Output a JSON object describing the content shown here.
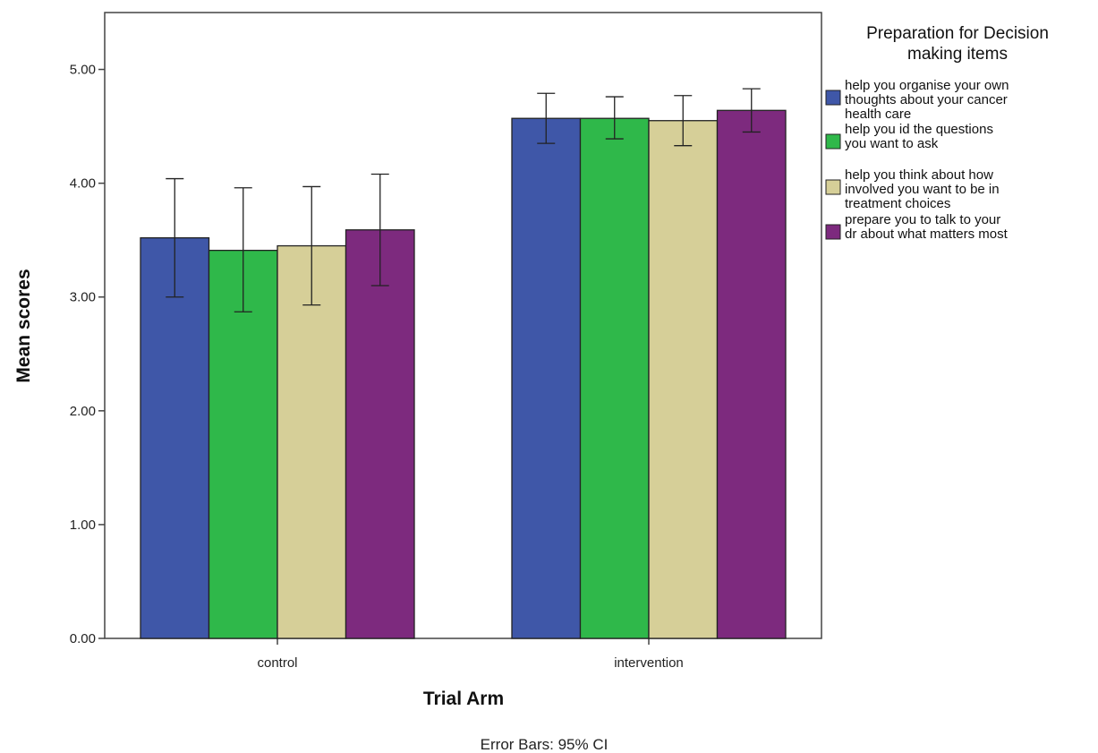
{
  "chart_data": {
    "type": "bar",
    "categories": [
      "control",
      "intervention"
    ],
    "xlabel": "Trial Arm",
    "ylabel": "Mean scores",
    "ylim": [
      0,
      5.5
    ],
    "yticks": [
      "0.00",
      "1.00",
      "2.00",
      "3.00",
      "4.00",
      "5.00"
    ],
    "grid": false,
    "legend": {
      "title_lines": [
        "Preparation for Decision",
        "making items"
      ],
      "placement": "right"
    },
    "footnote": "Error Bars: 95% CI",
    "series": [
      {
        "name": "help you organise your own thoughts about your cancer health care",
        "name_lines": [
          "help you organise your own",
          "thoughts about your cancer",
          "health care"
        ],
        "color": "#3f57a8",
        "values": [
          3.52,
          4.57
        ],
        "ci_low": [
          3.0,
          4.35
        ],
        "ci_high": [
          4.04,
          4.79
        ]
      },
      {
        "name": "help you id the questions you want to ask",
        "name_lines": [
          "help you id the questions",
          "you want to ask"
        ],
        "color": "#2fb84a",
        "values": [
          3.41,
          4.57
        ],
        "ci_low": [
          2.87,
          4.39
        ],
        "ci_high": [
          3.96,
          4.76
        ]
      },
      {
        "name": "help you think about how involved you want to be in treatment choices",
        "name_lines": [
          "help you think about how",
          "involved you want to be in",
          "treatment choices"
        ],
        "color": "#d6cf98",
        "values": [
          3.45,
          4.55
        ],
        "ci_low": [
          2.93,
          4.33
        ],
        "ci_high": [
          3.97,
          4.77
        ]
      },
      {
        "name": "prepare you to talk to your dr about what matters most",
        "name_lines": [
          "prepare you to talk to your",
          "dr about what matters most"
        ],
        "color": "#7d2a7e",
        "values": [
          3.59,
          4.64
        ],
        "ci_low": [
          3.1,
          4.45
        ],
        "ci_high": [
          4.08,
          4.83
        ]
      }
    ]
  }
}
